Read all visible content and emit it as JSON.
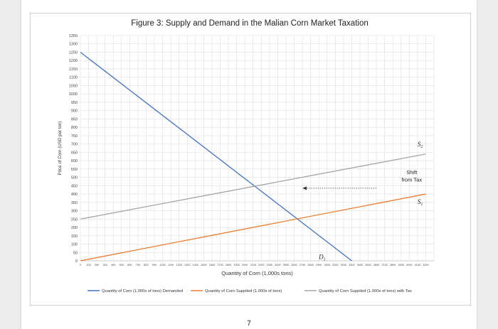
{
  "document": {
    "page_number": "7"
  },
  "chart_data": {
    "type": "line",
    "title": "Figure 3: Supply and Demand in the Malian Corn Market Taxation",
    "xlabel": "Quantity of Corn (1,000s tons)",
    "ylabel": "Price of Corn (USD per ton)",
    "x_ticks": [
      0,
      100,
      200,
      300,
      400,
      500,
      600,
      700,
      800,
      900,
      1000,
      1100,
      1200,
      1300,
      1400,
      1500,
      1600,
      1700,
      1800,
      1900,
      2000,
      2100,
      2200,
      2300,
      2400,
      2500,
      2600,
      2700,
      2800,
      2900,
      3000,
      3100,
      3200,
      3300,
      3400,
      3500,
      3600,
      3700,
      3800,
      3900,
      4000,
      4100,
      4200
    ],
    "y_ticks": [
      0,
      50,
      100,
      150,
      200,
      250,
      300,
      350,
      400,
      450,
      500,
      550,
      600,
      650,
      700,
      750,
      800,
      850,
      900,
      950,
      1000,
      1050,
      1100,
      1150,
      1200,
      1250,
      1300,
      1350
    ],
    "xlim": [
      0,
      4300
    ],
    "ylim": [
      0,
      1350
    ],
    "grid": true,
    "legend_position": "bottom",
    "series": [
      {
        "name": "Quantity of Corn (1,000s of tons) Demanded",
        "color": "#4472C4",
        "x": [
          0,
          3300
        ],
        "y": [
          1250,
          0
        ],
        "label": "D1"
      },
      {
        "name": "Quantity of Corn Supplied (1,000s of tons)",
        "color": "#ED7D31",
        "x": [
          0,
          4200
        ],
        "y": [
          0,
          400
        ],
        "label": "S1"
      },
      {
        "name": "Quantity of Corn Supplied (1,000s of tons) with Tax",
        "color": "#A5A5A5",
        "x": [
          0,
          4200
        ],
        "y": [
          250,
          640
        ],
        "label": "S2"
      }
    ],
    "annotations": {
      "shift_line1": "Shift",
      "shift_line2": "from Tax",
      "shift_arrow": {
        "x_from": 3600,
        "x_to": 2700,
        "y": 435
      }
    },
    "curve_labels": {
      "D1": "D",
      "D1_sub": "1",
      "S1": "S",
      "S1_sub": "1",
      "S2": "S",
      "S2_sub": "2"
    }
  }
}
